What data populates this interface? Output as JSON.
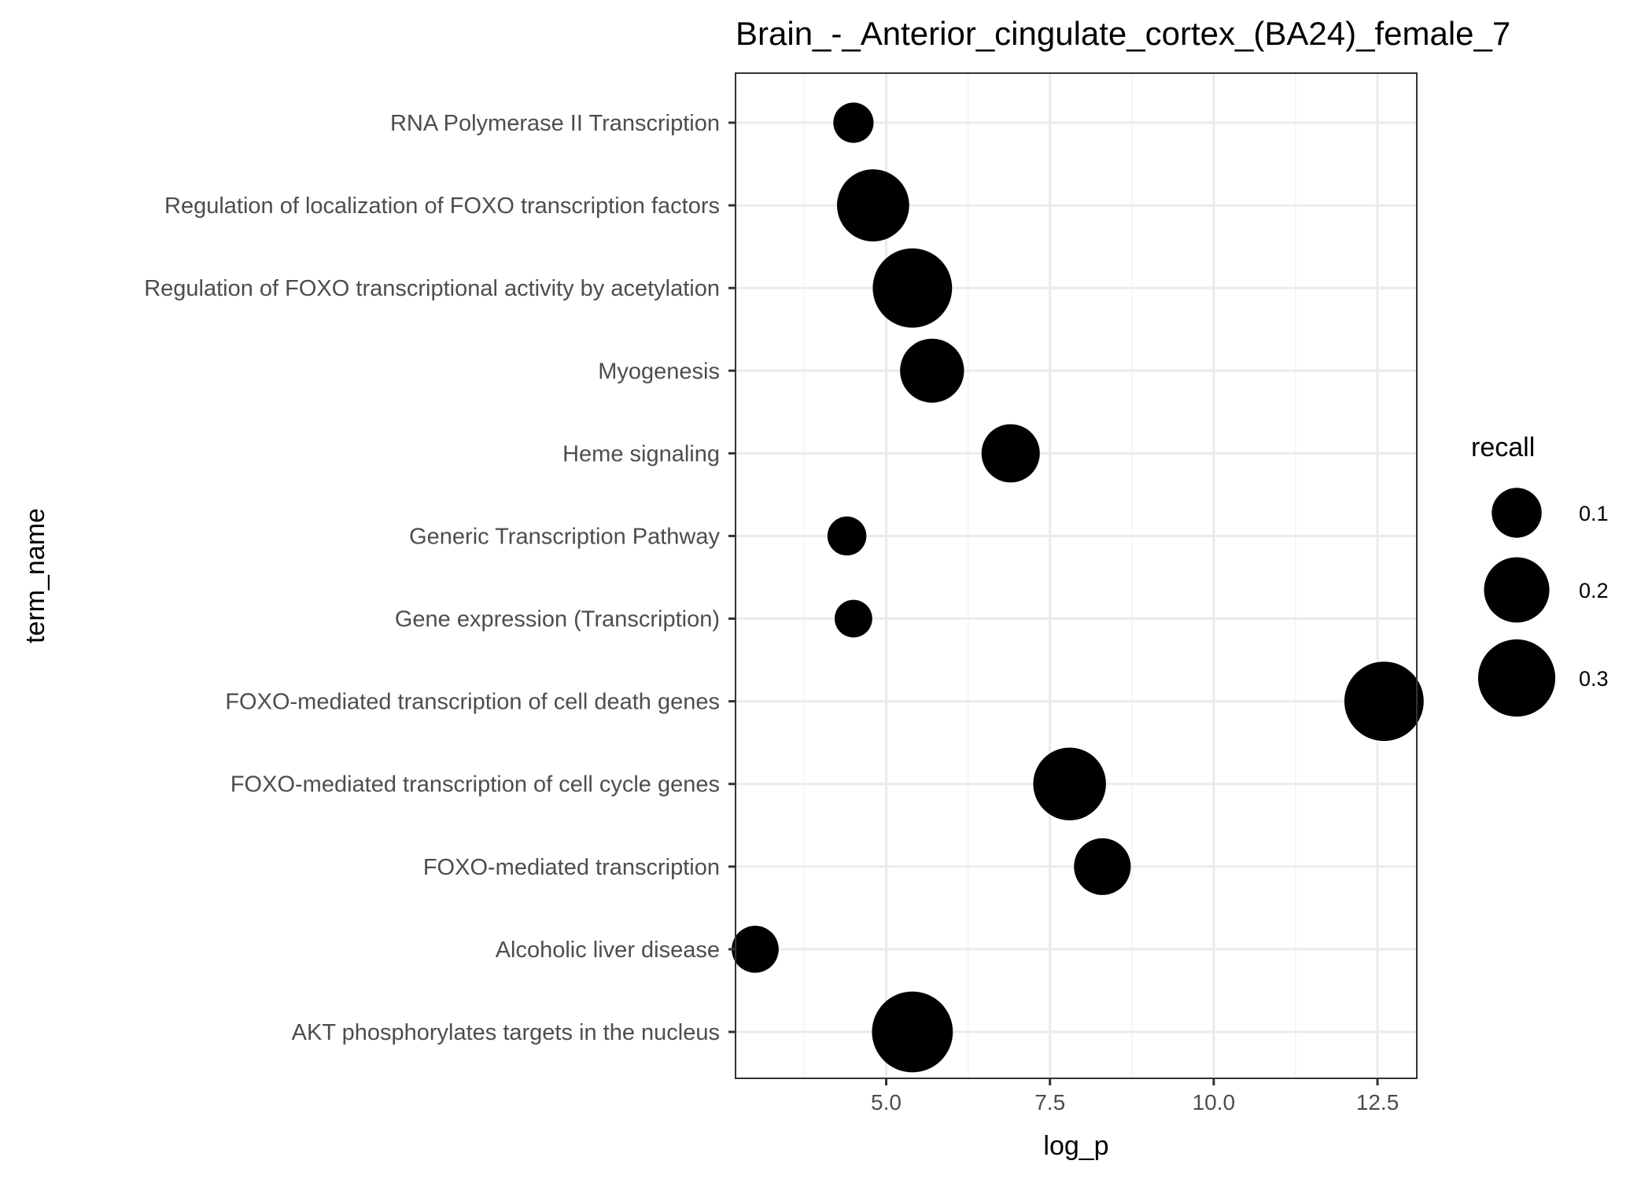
{
  "chart_data": {
    "type": "scatter",
    "title": "Brain_-_Anterior_cingulate_cortex_(BA24)_female_7",
    "xlabel": "log_p",
    "ylabel": "term_name",
    "xlim": [
      2.7,
      13.1
    ],
    "x_ticks": [
      5.0,
      7.5,
      10.0,
      12.5
    ],
    "x_tick_labels": [
      "5.0",
      "7.5",
      "10.0",
      "12.5"
    ],
    "grid": true,
    "legend": {
      "title": "recall",
      "placement": "right",
      "entries": [
        {
          "label": "0.1",
          "value": 0.1
        },
        {
          "label": "0.2",
          "value": 0.2
        },
        {
          "label": "0.3",
          "value": 0.3
        }
      ]
    },
    "points": [
      {
        "term": "RNA Polymerase II Transcription",
        "log_p": 4.5,
        "recall": 0.055
      },
      {
        "term": "Regulation of localization of FOXO transcription factors",
        "log_p": 4.8,
        "recall": 0.255
      },
      {
        "term": "Regulation of FOXO transcriptional activity by acetylation",
        "log_p": 5.4,
        "recall": 0.32
      },
      {
        "term": "Myogenesis",
        "log_p": 5.7,
        "recall": 0.19
      },
      {
        "term": "Heme signaling",
        "log_p": 6.9,
        "recall": 0.15
      },
      {
        "term": "Generic Transcription Pathway",
        "log_p": 4.4,
        "recall": 0.05
      },
      {
        "term": "Gene expression (Transcription)",
        "log_p": 4.5,
        "recall": 0.045
      },
      {
        "term": "FOXO-mediated transcription of cell death genes",
        "log_p": 12.6,
        "recall": 0.32
      },
      {
        "term": "FOXO-mediated transcription of cell cycle genes",
        "log_p": 7.8,
        "recall": 0.26
      },
      {
        "term": "FOXO-mediated transcription",
        "log_p": 8.3,
        "recall": 0.14
      },
      {
        "term": "Alcoholic liver disease",
        "log_p": 3.0,
        "recall": 0.085
      },
      {
        "term": "AKT phosphorylates targets in the nucleus",
        "log_p": 5.4,
        "recall": 0.335
      }
    ]
  }
}
